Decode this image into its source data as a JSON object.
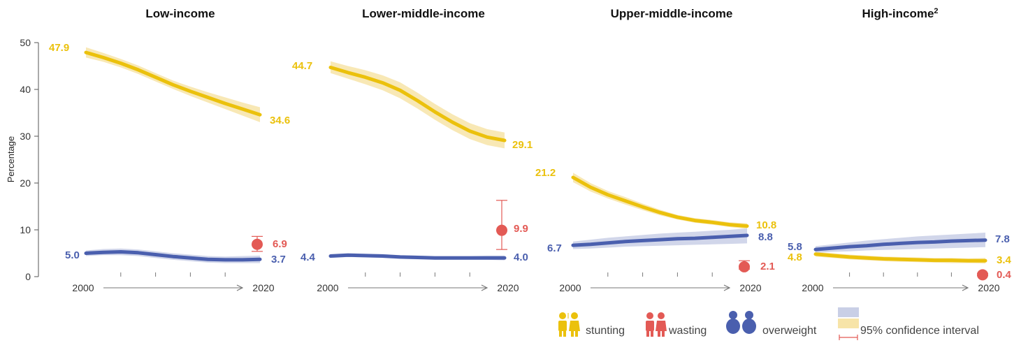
{
  "colors": {
    "stunting": "#EBC10C",
    "stunting_band": "#F7E4A8",
    "wasting": "#E35A55",
    "overweight": "#4A5FAE",
    "overweight_band": "#C9CFE6",
    "axis": "#555555",
    "text": "#111111"
  },
  "y_axis": {
    "label": "Percentage",
    "ticks": [
      "0",
      "10",
      "20",
      "30",
      "40",
      "50"
    ],
    "range": [
      0,
      50
    ]
  },
  "legend": {
    "stunting": "stunting",
    "wasting": "wasting",
    "overweight": "overweight",
    "ci": "95% confidence interval",
    "icons": [
      "stunting-icon",
      "wasting-icon",
      "overweight-icon",
      "confidence-interval-swatch"
    ]
  },
  "chart_data": [
    {
      "type": "line",
      "title": "Low-income",
      "title_sup": "",
      "x_ticks": [
        "2000",
        "2020"
      ],
      "xlim": [
        2000,
        2020
      ],
      "ylim": [
        0,
        50
      ],
      "series": [
        {
          "name": "stunting",
          "x": [
            2000,
            2002,
            2004,
            2006,
            2008,
            2010,
            2012,
            2014,
            2016,
            2018,
            2020
          ],
          "values": [
            47.9,
            46.8,
            45.6,
            44.2,
            42.6,
            41.0,
            39.6,
            38.3,
            37.0,
            35.8,
            34.6
          ],
          "ci_low": [
            46.8,
            45.9,
            44.7,
            43.3,
            41.7,
            40.1,
            38.6,
            37.2,
            35.8,
            34.4,
            33.0
          ],
          "ci_high": [
            49.0,
            47.8,
            46.5,
            45.1,
            43.5,
            41.9,
            40.6,
            39.4,
            38.3,
            37.2,
            36.2
          ]
        },
        {
          "name": "overweight",
          "x": [
            2000,
            2002,
            2004,
            2006,
            2008,
            2010,
            2012,
            2014,
            2016,
            2018,
            2020
          ],
          "values": [
            5.0,
            5.2,
            5.3,
            5.1,
            4.7,
            4.3,
            4.0,
            3.7,
            3.6,
            3.6,
            3.7
          ],
          "ci_low": [
            4.4,
            4.6,
            4.6,
            4.4,
            4.0,
            3.6,
            3.3,
            3.0,
            2.9,
            2.9,
            2.9
          ],
          "ci_high": [
            5.6,
            5.9,
            6.0,
            5.8,
            5.4,
            5.0,
            4.7,
            4.4,
            4.3,
            4.4,
            4.5
          ]
        }
      ],
      "wasting": {
        "year": 2020,
        "value": 6.9,
        "ci": [
          5.4,
          8.6
        ]
      },
      "labels": {
        "stunting_start": "47.9",
        "stunting_end": "34.6",
        "overweight_start": "5.0",
        "overweight_end": "3.7",
        "wasting": "6.9"
      }
    },
    {
      "type": "line",
      "title": "Lower-middle-income",
      "title_sup": "",
      "x_ticks": [
        "2000",
        "2020"
      ],
      "xlim": [
        2000,
        2020
      ],
      "ylim": [
        0,
        50
      ],
      "series": [
        {
          "name": "stunting",
          "x": [
            2000,
            2002,
            2004,
            2006,
            2008,
            2010,
            2012,
            2014,
            2016,
            2018,
            2020
          ],
          "values": [
            44.7,
            43.6,
            42.6,
            41.4,
            39.8,
            37.6,
            35.2,
            33.0,
            31.1,
            29.8,
            29.1
          ],
          "ci_low": [
            43.5,
            42.3,
            41.1,
            39.8,
            38.1,
            35.9,
            33.5,
            31.3,
            29.4,
            28.1,
            27.4
          ],
          "ci_high": [
            46.0,
            45.0,
            44.1,
            43.0,
            41.5,
            39.3,
            36.9,
            34.7,
            32.8,
            31.5,
            30.8
          ]
        },
        {
          "name": "overweight",
          "x": [
            2000,
            2002,
            2004,
            2006,
            2008,
            2010,
            2012,
            2014,
            2016,
            2018,
            2020
          ],
          "values": [
            4.4,
            4.6,
            4.5,
            4.4,
            4.2,
            4.1,
            4.0,
            4.0,
            4.0,
            4.0,
            4.0
          ],
          "ci_low": [
            4.0,
            4.2,
            4.1,
            4.0,
            3.8,
            3.7,
            3.6,
            3.6,
            3.6,
            3.6,
            3.5
          ],
          "ci_high": [
            4.8,
            5.0,
            4.9,
            4.8,
            4.6,
            4.5,
            4.4,
            4.4,
            4.4,
            4.5,
            4.5
          ]
        }
      ],
      "wasting": {
        "year": 2020,
        "value": 9.9,
        "ci": [
          5.8,
          16.3
        ]
      },
      "labels": {
        "stunting_start": "44.7",
        "stunting_end": "29.1",
        "overweight_start": "4.4",
        "overweight_end": "4.0",
        "wasting": "9.9"
      }
    },
    {
      "type": "line",
      "title": "Upper-middle-income",
      "title_sup": "",
      "x_ticks": [
        "2000",
        "2020"
      ],
      "xlim": [
        2000,
        2020
      ],
      "ylim": [
        0,
        50
      ],
      "series": [
        {
          "name": "stunting",
          "x": [
            2000,
            2002,
            2004,
            2006,
            2008,
            2010,
            2012,
            2014,
            2016,
            2018,
            2020
          ],
          "values": [
            21.2,
            19.1,
            17.5,
            16.2,
            14.9,
            13.7,
            12.7,
            12.0,
            11.6,
            11.1,
            10.8
          ],
          "ci_low": [
            20.2,
            18.2,
            16.7,
            15.4,
            14.2,
            13.1,
            12.2,
            11.5,
            11.1,
            10.6,
            10.2
          ],
          "ci_high": [
            22.2,
            20.0,
            18.3,
            17.0,
            15.6,
            14.3,
            13.2,
            12.5,
            12.1,
            11.6,
            11.4
          ]
        },
        {
          "name": "overweight",
          "x": [
            2000,
            2002,
            2004,
            2006,
            2008,
            2010,
            2012,
            2014,
            2016,
            2018,
            2020
          ],
          "values": [
            6.7,
            6.9,
            7.2,
            7.5,
            7.7,
            7.9,
            8.1,
            8.2,
            8.4,
            8.6,
            8.8
          ],
          "ci_low": [
            5.9,
            6.0,
            6.2,
            6.4,
            6.5,
            6.6,
            6.7,
            6.8,
            6.9,
            7.0,
            7.1
          ],
          "ci_high": [
            7.5,
            7.9,
            8.3,
            8.6,
            8.9,
            9.2,
            9.4,
            9.6,
            9.8,
            10.0,
            10.3
          ]
        }
      ],
      "wasting": {
        "year": 2020,
        "value": 2.1,
        "ci": [
          1.6,
          3.4
        ]
      },
      "labels": {
        "stunting_start": "21.2",
        "stunting_end": "10.8",
        "overweight_start": "6.7",
        "overweight_end": "8.8",
        "wasting": "2.1"
      }
    },
    {
      "type": "line",
      "title": "High-income",
      "title_sup": "2",
      "x_ticks": [
        "2000",
        "2020"
      ],
      "xlim": [
        2000,
        2020
      ],
      "ylim": [
        0,
        50
      ],
      "series": [
        {
          "name": "stunting",
          "x": [
            2000,
            2002,
            2004,
            2006,
            2008,
            2010,
            2012,
            2014,
            2016,
            2018,
            2020
          ],
          "values": [
            4.8,
            4.5,
            4.2,
            4.0,
            3.8,
            3.7,
            3.6,
            3.5,
            3.5,
            3.4,
            3.4
          ],
          "ci_low": [
            4.3,
            4.0,
            3.7,
            3.5,
            3.3,
            3.2,
            3.1,
            3.0,
            2.9,
            2.9,
            2.8
          ],
          "ci_high": [
            5.3,
            5.0,
            4.7,
            4.5,
            4.3,
            4.2,
            4.1,
            4.0,
            4.0,
            3.9,
            4.0
          ]
        },
        {
          "name": "overweight",
          "x": [
            2000,
            2002,
            2004,
            2006,
            2008,
            2010,
            2012,
            2014,
            2016,
            2018,
            2020
          ],
          "values": [
            5.8,
            6.1,
            6.4,
            6.6,
            6.9,
            7.1,
            7.3,
            7.4,
            7.6,
            7.7,
            7.8
          ],
          "ci_low": [
            5.1,
            5.3,
            5.4,
            5.6,
            5.7,
            5.8,
            5.9,
            6.0,
            6.1,
            6.2,
            6.3
          ],
          "ci_high": [
            6.5,
            6.9,
            7.3,
            7.7,
            8.0,
            8.3,
            8.6,
            8.8,
            9.0,
            9.2,
            9.4
          ]
        }
      ],
      "wasting": {
        "year": 2020,
        "value": 0.4,
        "ci": [
          0.2,
          0.7
        ]
      },
      "labels": {
        "stunting_start": "4.8",
        "stunting_end": "3.4",
        "overweight_start": "5.8",
        "overweight_end": "7.8",
        "wasting": "0.4"
      }
    }
  ]
}
